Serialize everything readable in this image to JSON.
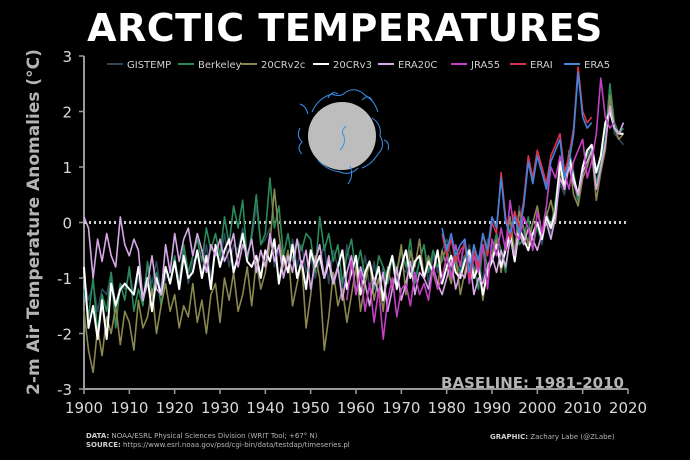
{
  "title": "ARCTIC TEMPERATURES",
  "baseline_note": "BASELINE: 1981-2010",
  "footer": {
    "data_label": "DATA:",
    "data_text": "NOAA/ESRL Physical Sciences Division (WRIT Tool; +67° N)",
    "source_label": "SOURCE:",
    "source_text": "https://www.esrl.noaa.gov/psd/cgi-bin/data/testdap/timeseries.pl",
    "graphic_label": "GRAPHIC:",
    "graphic_text": "Zachary Labe (@ZLabe)"
  },
  "colors": {
    "background": "#000000",
    "zero_line": "#d0d0d0",
    "globe_fill": "#bdbdbd",
    "globe_lines": "#3a8fe8"
  },
  "chart_data": {
    "type": "line",
    "title": "ARCTIC TEMPERATURES",
    "xlabel": "",
    "ylabel": "2-m Air Temperature Anomalies (°C)",
    "xlim": [
      1900,
      2020
    ],
    "ylim": [
      -3,
      3
    ],
    "x_ticks": [
      1900,
      1910,
      1920,
      1930,
      1940,
      1950,
      1960,
      1970,
      1980,
      1990,
      2000,
      2010,
      2020
    ],
    "y_ticks": [
      -3,
      -2,
      -1,
      0,
      1,
      2,
      3
    ],
    "grid": false,
    "legend_placement": "top",
    "reference_line": {
      "y": 0,
      "style": "dotted"
    },
    "series": [
      {
        "name": "GISTEMP",
        "color": "#2e4657",
        "start": 1900,
        "values": [
          -1.0,
          -1.4,
          -1.1,
          -1.6,
          -1.2,
          -1.3,
          -0.9,
          -1.5,
          -1.1,
          -1.2,
          -0.9,
          -1.3,
          -1.0,
          -1.4,
          -0.8,
          -1.1,
          -0.7,
          -1.3,
          -1.0,
          -0.9,
          -0.8,
          -1.0,
          -0.5,
          -1.1,
          -0.7,
          -0.6,
          -0.9,
          -0.4,
          -1.0,
          -0.5,
          -0.7,
          -0.2,
          -0.8,
          -0.4,
          -0.5,
          -0.1,
          -0.6,
          -0.3,
          0.3,
          -0.4,
          -0.3,
          -0.1,
          -0.8,
          -0.5,
          -0.6,
          -0.9,
          -0.3,
          -0.8,
          -0.4,
          -0.9,
          -0.6,
          -1.0,
          -0.7,
          -0.4,
          -1.1,
          -0.5,
          -0.8,
          -1.2,
          -0.4,
          -0.9,
          -0.7,
          -1.0,
          -0.6,
          -1.2,
          -0.7,
          -1.3,
          -0.8,
          -1.0,
          -0.6,
          -1.1,
          -0.8,
          -0.9,
          -0.5,
          -1.0,
          -0.7,
          -0.4,
          -1.1,
          -0.6,
          -0.9,
          -0.5,
          -0.3,
          -0.6,
          -0.8,
          -0.5,
          -0.7,
          -0.4,
          -0.9,
          -0.6,
          -1.1,
          -0.3,
          -0.5,
          -0.2,
          -0.7,
          -0.4,
          -0.1,
          -0.5,
          0.3,
          -0.2,
          -0.3,
          0.0,
          -0.1,
          -0.4,
          0.1,
          -0.2,
          0.2,
          0.7,
          0.5,
          1.2,
          0.8,
          0.3,
          0.9,
          1.1,
          1.2,
          0.6,
          1.0,
          1.3,
          2.2,
          1.6,
          1.5,
          1.4
        ]
      },
      {
        "name": "Berkeley",
        "color": "#2a8a5a",
        "start": 1900,
        "values": [
          -1.2,
          -1.7,
          -1.0,
          -2.0,
          -1.3,
          -1.6,
          -0.9,
          -1.9,
          -1.1,
          -1.4,
          -0.8,
          -1.6,
          -1.2,
          -1.5,
          -0.7,
          -1.3,
          -0.9,
          -1.5,
          -0.8,
          -1.1,
          -0.6,
          -1.2,
          -0.4,
          -0.9,
          -0.6,
          -0.3,
          -0.7,
          -0.1,
          -0.5,
          -0.2,
          -0.6,
          0.1,
          -0.4,
          0.3,
          -0.1,
          0.4,
          -0.7,
          -0.2,
          0.5,
          -0.4,
          -0.2,
          0.8,
          -0.1,
          0.3,
          -0.6,
          -0.2,
          -0.7,
          -0.3,
          -0.5,
          -0.2,
          -0.3,
          -0.9,
          0.1,
          -0.5,
          -0.2,
          -0.7,
          -0.4,
          -1.1,
          -0.6,
          -0.3,
          -0.9,
          -0.5,
          -1.0,
          -0.7,
          -1.2,
          -0.6,
          -0.8,
          -1.1,
          -0.6,
          -0.9,
          -0.5,
          -0.8,
          -0.3,
          -1.1,
          -0.7,
          -0.4,
          -0.9,
          -0.5,
          -0.8,
          -0.7,
          -0.4,
          -1.0,
          -0.7,
          -0.9,
          -0.6,
          -0.5,
          -0.8,
          -1.2,
          -0.4,
          -0.8,
          -0.6,
          -0.2,
          -0.5,
          -0.9,
          -0.2,
          0.2,
          -0.4,
          -0.3,
          0.1,
          -0.5,
          0.0,
          -0.3,
          0.2,
          -0.1,
          0.4,
          1.0,
          0.6,
          1.3,
          0.9,
          0.4,
          1.0,
          1.2,
          1.4,
          0.7,
          1.1,
          1.5,
          2.5,
          1.8,
          1.6,
          1.7
        ]
      },
      {
        "name": "20CRv2c",
        "color": "#8a874f",
        "start": 1900,
        "values": [
          -1.6,
          -2.3,
          -2.7,
          -1.9,
          -2.4,
          -1.7,
          -2.0,
          -1.5,
          -2.2,
          -1.6,
          -1.8,
          -2.3,
          -1.4,
          -1.9,
          -1.7,
          -1.2,
          -2.0,
          -1.5,
          -1.1,
          -1.6,
          -1.3,
          -1.9,
          -1.5,
          -1.7,
          -1.1,
          -1.8,
          -1.4,
          -2.0,
          -1.3,
          -1.1,
          -1.8,
          -1.0,
          -1.4,
          -0.9,
          -1.6,
          -1.3,
          -0.8,
          -1.5,
          -0.7,
          -1.2,
          -0.9,
          -0.4,
          0.6,
          -0.2,
          -0.8,
          -0.5,
          -1.5,
          -1.1,
          -0.7,
          -1.9,
          -1.3,
          -0.6,
          -1.0,
          -2.3,
          -1.7,
          -0.9,
          -1.5,
          -1.2,
          -1.8,
          -1.3,
          -0.8,
          -1.6,
          -1.1,
          -0.7,
          -1.4,
          -1.0,
          -1.6,
          -0.8,
          -1.2,
          -0.9,
          -0.4,
          -1.3,
          -0.5,
          -0.8,
          -0.3,
          -1.0,
          -0.6,
          -0.9,
          -1.2,
          -0.5,
          -0.8,
          -1.1,
          -0.6,
          -1.3,
          -0.9,
          -0.5,
          -1.0,
          -0.7,
          -1.4,
          -0.8,
          -0.6,
          -0.3,
          -0.9,
          -0.4,
          0.1,
          -0.6,
          0.2,
          -0.1,
          -0.4,
          0.0,
          0.3,
          -0.2,
          0.1,
          0.4,
          0.0,
          0.9,
          0.7,
          1.1,
          0.5,
          0.3,
          0.8,
          1.0,
          1.3,
          0.4,
          0.9,
          1.3,
          2.3,
          1.7,
          1.5,
          1.6
        ]
      },
      {
        "name": "20CRv3",
        "color": "#ffffff",
        "start": 1900,
        "values": [
          -0.8,
          -1.9,
          -1.5,
          -2.1,
          -1.4,
          -2.1,
          -1.1,
          -1.5,
          -1.2,
          -1.1,
          -1.2,
          -1.3,
          -0.8,
          -1.4,
          -1.0,
          -1.6,
          -1.0,
          -1.3,
          -0.8,
          -1.1,
          -0.7,
          -1.2,
          -0.6,
          -1.0,
          -0.9,
          -0.5,
          -1.0,
          -0.6,
          -1.2,
          -0.4,
          -0.8,
          -0.5,
          -0.3,
          -0.9,
          -0.6,
          -0.2,
          -0.7,
          -0.8,
          -0.6,
          -1.0,
          -0.5,
          -0.7,
          -0.3,
          -1.1,
          -0.6,
          -0.9,
          -0.4,
          -1.0,
          -0.7,
          -1.2,
          -0.5,
          -0.8,
          -0.6,
          -1.0,
          -0.7,
          -1.1,
          -0.8,
          -0.5,
          -1.2,
          -0.9,
          -0.6,
          -1.3,
          -0.9,
          -0.7,
          -1.1,
          -0.8,
          -1.4,
          -0.9,
          -0.6,
          -1.2,
          -0.8,
          -0.5,
          -1.0,
          -0.7,
          -0.6,
          -1.0,
          -0.7,
          -0.9,
          -0.5,
          -1.1,
          -0.8,
          -0.6,
          -0.9,
          -1.0,
          -0.7,
          -0.5,
          -1.0,
          -0.8,
          -1.3,
          -0.9,
          -0.7,
          -0.4,
          -0.8,
          -0.5,
          -0.2,
          -0.7,
          -0.1,
          -0.3,
          -0.5,
          -0.2,
          0.0,
          -0.3,
          0.1,
          -0.1,
          0.2,
          1.1,
          0.6,
          1.2,
          0.8,
          0.5,
          1.0,
          1.3,
          1.4,
          0.9,
          1.2,
          1.8,
          2.0,
          1.7,
          1.6,
          1.6
        ]
      },
      {
        "name": "ERA20C",
        "color": "#d6a8e6",
        "start": 1900,
        "values": [
          0.1,
          -0.1,
          -1.0,
          -0.3,
          -0.7,
          -0.2,
          -0.6,
          -0.8,
          0.1,
          -0.4,
          -0.6,
          -0.3,
          -0.5,
          -1.4,
          -1.1,
          -0.6,
          -1.2,
          -1.3,
          -0.4,
          -0.9,
          -0.2,
          -0.7,
          -0.3,
          -0.1,
          -0.6,
          -0.2,
          -0.5,
          -0.9,
          -0.4,
          -0.6,
          -0.3,
          -0.7,
          -0.5,
          -0.2,
          -0.8,
          -0.4,
          -0.6,
          -0.3,
          -0.9,
          -0.5,
          -0.8,
          -0.2,
          -0.7,
          -0.4,
          -1.0,
          -0.6,
          -0.9,
          -0.3,
          -0.8,
          -0.5,
          -1.2,
          -0.7,
          -0.4,
          -1.0,
          -0.6,
          -1.1,
          -0.8,
          -1.4,
          -0.9,
          -0.6,
          -1.3,
          -0.8,
          -1.1,
          -1.5,
          -1.0,
          -1.3,
          -0.9,
          -1.6,
          -1.2,
          -0.8,
          -1.4,
          -1.1,
          -0.7,
          -1.3,
          -0.9,
          -1.0,
          -1.2,
          -0.8,
          -1.1,
          -1.3,
          -1.0,
          -0.7,
          -1.2,
          -0.9,
          -1.0,
          -0.6,
          -1.3,
          -1.0,
          -1.1,
          -0.8,
          -0.6,
          -0.9,
          -0.5,
          -0.8,
          -0.3,
          -0.6,
          -0.2,
          -0.4,
          -0.1,
          -0.3,
          -0.5,
          -0.2,
          0.0,
          -0.3,
          0.1,
          0.8,
          0.6,
          1.0,
          0.7,
          0.5,
          0.9,
          1.1,
          1.3,
          0.6,
          1.0,
          1.4,
          2.1,
          1.7,
          1.6,
          1.8
        ]
      },
      {
        "name": "JRA55",
        "color": "#c43fc4",
        "start": 1958,
        "values": [
          -1.4,
          -0.7,
          -1.3,
          -0.9,
          -1.6,
          -1.1,
          -1.8,
          -1.2,
          -2.1,
          -1.4,
          -1.0,
          -1.7,
          -1.2,
          -1.1,
          -1.5,
          -0.9,
          -1.3,
          -1.1,
          -1.4,
          -0.8,
          -1.2,
          -1.0,
          -0.6,
          -1.0,
          -0.4,
          -0.8,
          -0.3,
          -1.1,
          -0.6,
          -0.9,
          -0.4,
          -1.2,
          -0.3,
          -0.6,
          -0.1,
          -0.5,
          0.4,
          -0.2,
          -0.3,
          0.1,
          -0.1,
          -0.5,
          0.2,
          -0.2,
          0.3,
          1.0,
          0.8,
          1.2,
          0.9,
          0.6,
          1.1,
          1.3,
          1.5,
          0.8,
          1.1,
          1.6,
          2.6,
          1.9,
          1.7,
          1.8
        ]
      },
      {
        "name": "ERAI",
        "color": "#e0304a",
        "start": 1979,
        "values": [
          -0.2,
          -0.6,
          -0.3,
          -0.7,
          -0.5,
          -0.4,
          -1.0,
          -0.5,
          -0.8,
          -0.2,
          -0.6,
          0.0,
          -0.2,
          0.9,
          0.1,
          -0.3,
          0.2,
          -0.1,
          0.4,
          1.2,
          0.8,
          1.3,
          1.0,
          0.7,
          1.2,
          1.4,
          1.6,
          0.9,
          1.2,
          1.7,
          2.8,
          2.0,
          1.8,
          1.9
        ]
      },
      {
        "name": "ERA5",
        "color": "#3e86e0",
        "start": 1979,
        "values": [
          -0.1,
          -0.5,
          -0.2,
          -0.6,
          -0.4,
          -0.3,
          -0.9,
          -0.4,
          -0.7,
          -0.2,
          -0.5,
          0.1,
          -0.1,
          0.8,
          0.0,
          -0.2,
          0.1,
          -0.2,
          0.3,
          1.1,
          0.7,
          1.2,
          0.9,
          0.6,
          1.1,
          1.3,
          1.5,
          0.8,
          1.1,
          1.6,
          2.7,
          1.9,
          1.7,
          1.8
        ]
      }
    ]
  }
}
